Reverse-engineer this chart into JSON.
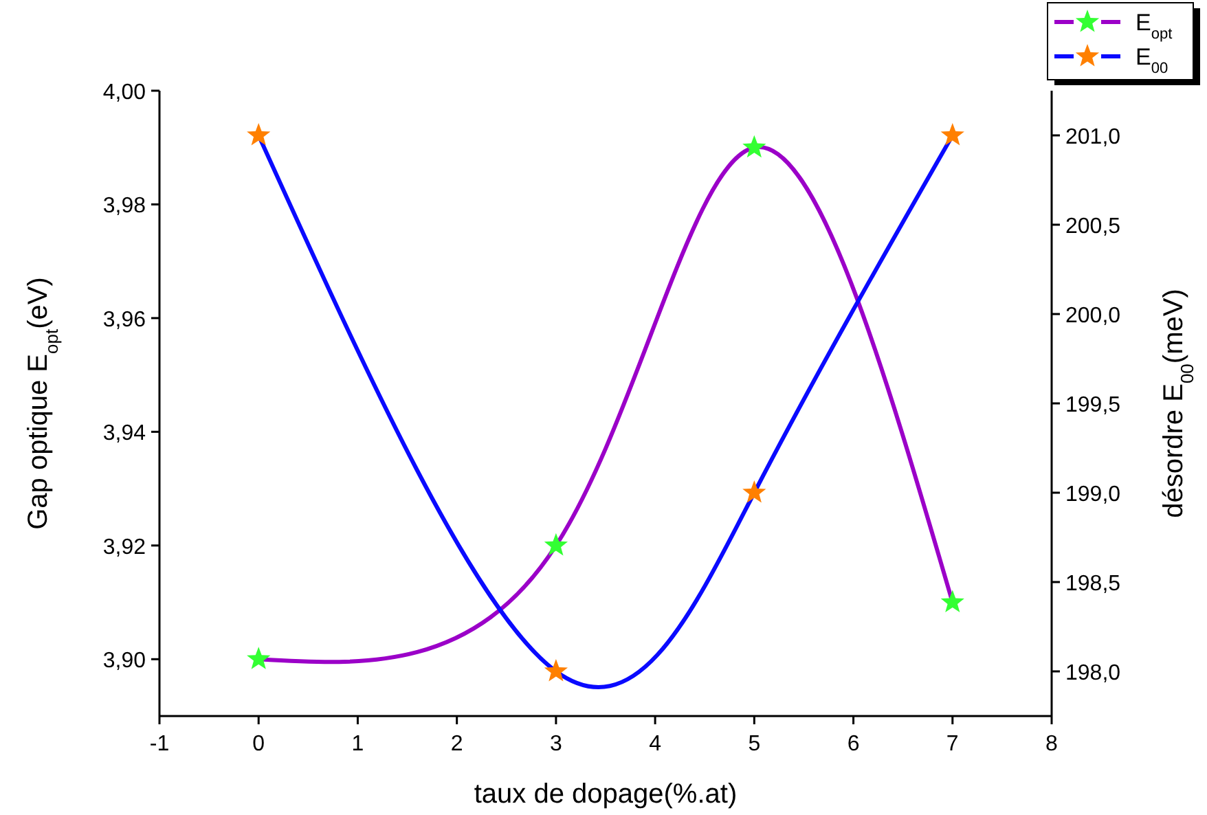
{
  "chart_data": {
    "type": "line",
    "xlabel": "taux de dopage(%.at)",
    "ylabel": "Gap optique E$_{opt}$(eV)",
    "y2label": "désordre E$_{00}$(meV)",
    "xlim": [
      -1,
      8
    ],
    "xticks": [
      -1,
      0,
      1,
      2,
      3,
      4,
      5,
      6,
      7,
      8
    ],
    "ylim": [
      3.89,
      4.0
    ],
    "yticks": [
      {
        "value": 3.9,
        "label": "3,90"
      },
      {
        "value": 3.92,
        "label": "3,92"
      },
      {
        "value": 3.94,
        "label": "3,94"
      },
      {
        "value": 3.96,
        "label": "3,96"
      },
      {
        "value": 3.98,
        "label": "3,98"
      },
      {
        "value": 4.0,
        "label": "4,00"
      }
    ],
    "y2lim": [
      197.75,
      201.25
    ],
    "y2ticks": [
      {
        "value": 198,
        "label": "198,0"
      },
      {
        "value": 198.5,
        "label": "198,5"
      },
      {
        "value": 199,
        "label": "199,0"
      },
      {
        "value": 199.5,
        "label": "199,5"
      },
      {
        "value": 200,
        "label": "200,0"
      },
      {
        "value": 200.5,
        "label": "200,5"
      },
      {
        "value": 201,
        "label": "201,0"
      }
    ],
    "x": [
      0,
      3,
      5,
      7
    ],
    "marker": "star",
    "line_style": "solid",
    "legend": "top right",
    "grid": false,
    "series": [
      {
        "name": "E$_{opt}$",
        "color": "#9b00c8",
        "colors": [
          "#33ff33",
          "#33ff33",
          "#33ff33",
          "#33ff33"
        ],
        "values": [
          3.9,
          3.92,
          3.99,
          3.91
        ]
      },
      {
        "name": "E$_{00}$",
        "color": "#0a0aff",
        "colors": [
          "#ff8000",
          "#ff8000",
          "#ff8000",
          "#ff8000"
        ],
        "axis": "y2",
        "values": [
          201.0,
          198.0,
          199.0,
          201.0
        ]
      }
    ]
  }
}
